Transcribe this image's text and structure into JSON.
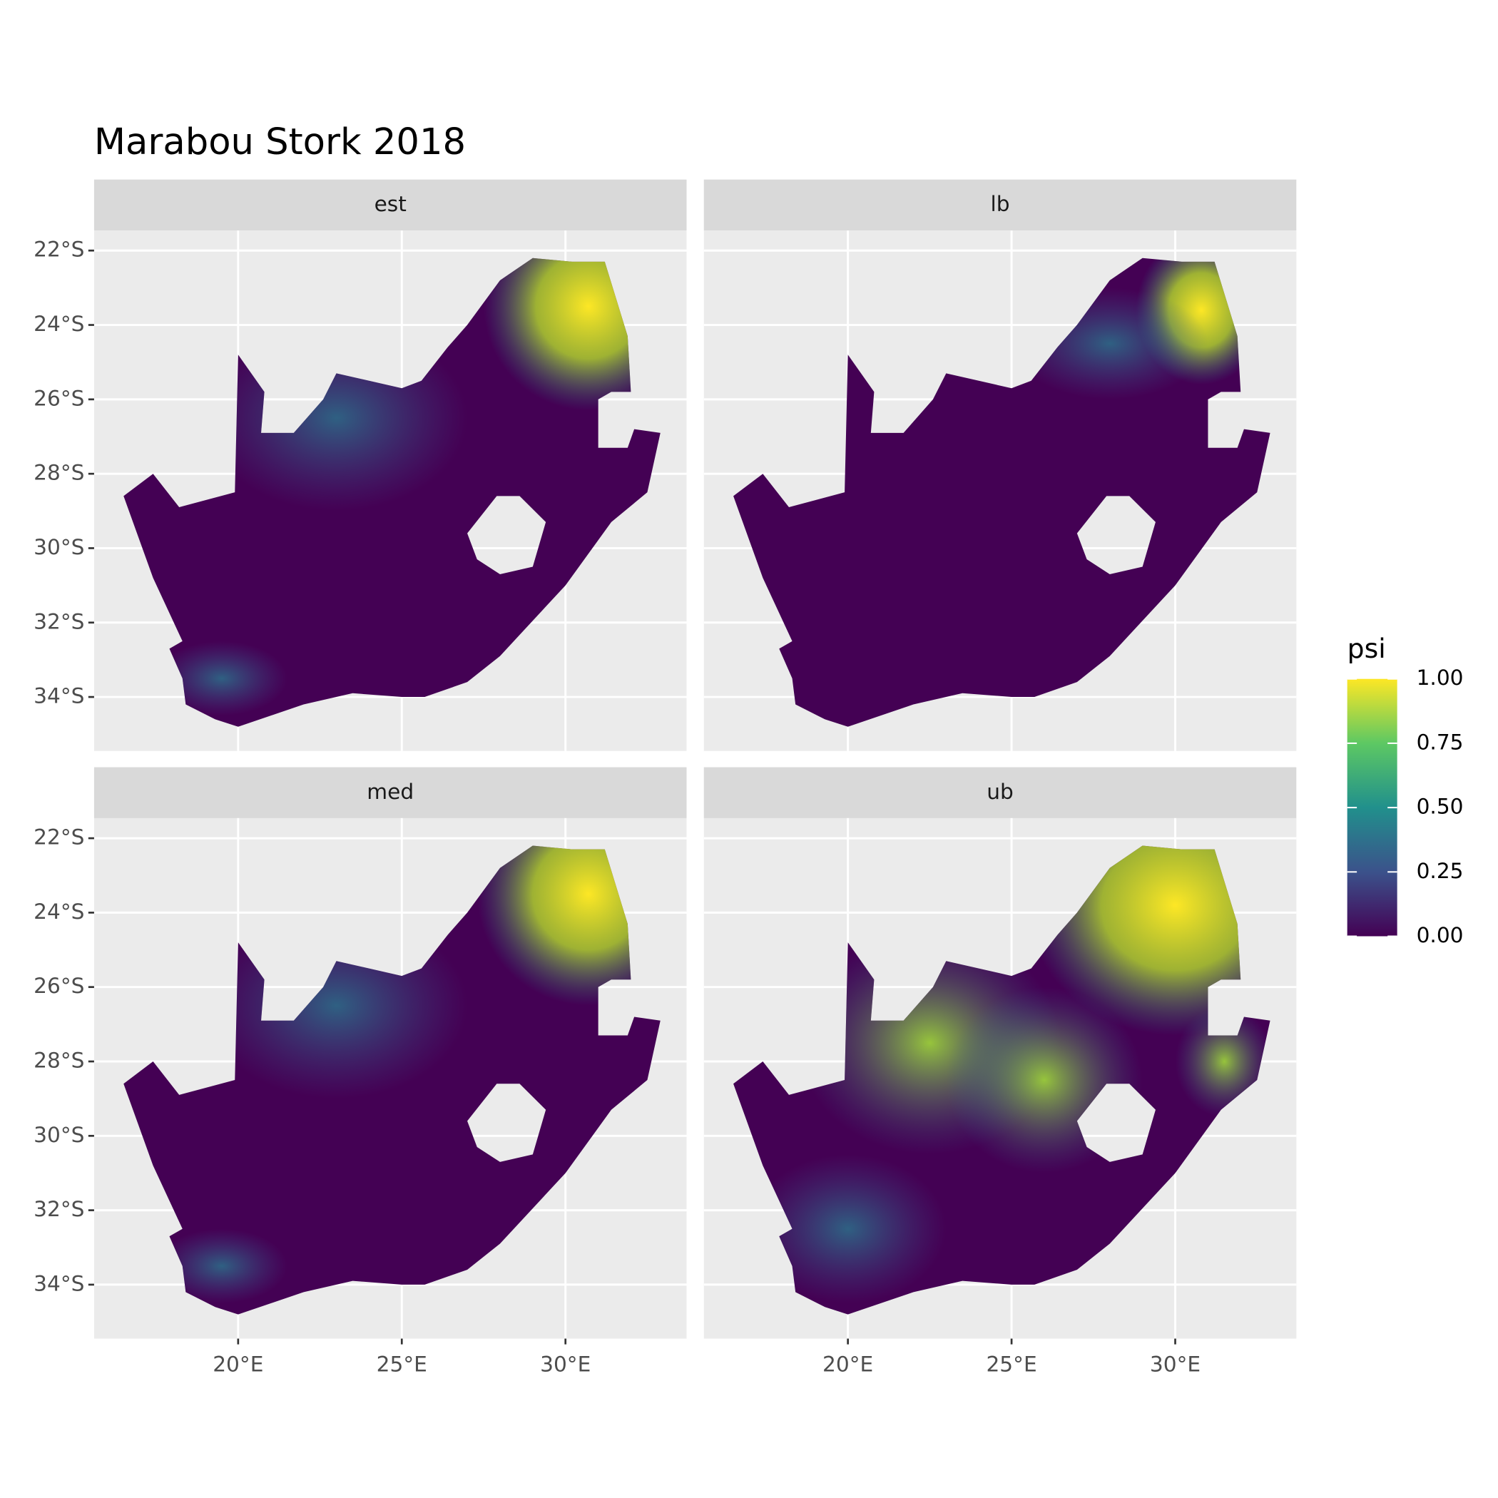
{
  "chart_data": {
    "type": "raster-map",
    "title": "Marabou Stork 2018",
    "facets": [
      "est",
      "lb",
      "med",
      "ub"
    ],
    "xlim": [
      15.6,
      33.7
    ],
    "ylim": [
      -35.45,
      -21.46
    ],
    "xticks": [
      {
        "value": 20,
        "label": "20°E"
      },
      {
        "value": 25,
        "label": "25°E"
      },
      {
        "value": 30,
        "label": "30°E"
      }
    ],
    "yticks": [
      {
        "value": -22,
        "label": "22°S"
      },
      {
        "value": -24,
        "label": "24°S"
      },
      {
        "value": -26,
        "label": "26°S"
      },
      {
        "value": -28,
        "label": "28°S"
      },
      {
        "value": -30,
        "label": "30°S"
      },
      {
        "value": -32,
        "label": "32°S"
      },
      {
        "value": -34,
        "label": "34°S"
      }
    ],
    "legend": {
      "title": "psi",
      "lim": [
        0,
        1
      ],
      "ticks": [
        {
          "value": 0,
          "label": "0.00"
        },
        {
          "value": 0.25,
          "label": "0.25"
        },
        {
          "value": 0.5,
          "label": "0.50"
        },
        {
          "value": 0.75,
          "label": "0.75"
        },
        {
          "value": 1,
          "label": "1.00"
        }
      ]
    }
  }
}
